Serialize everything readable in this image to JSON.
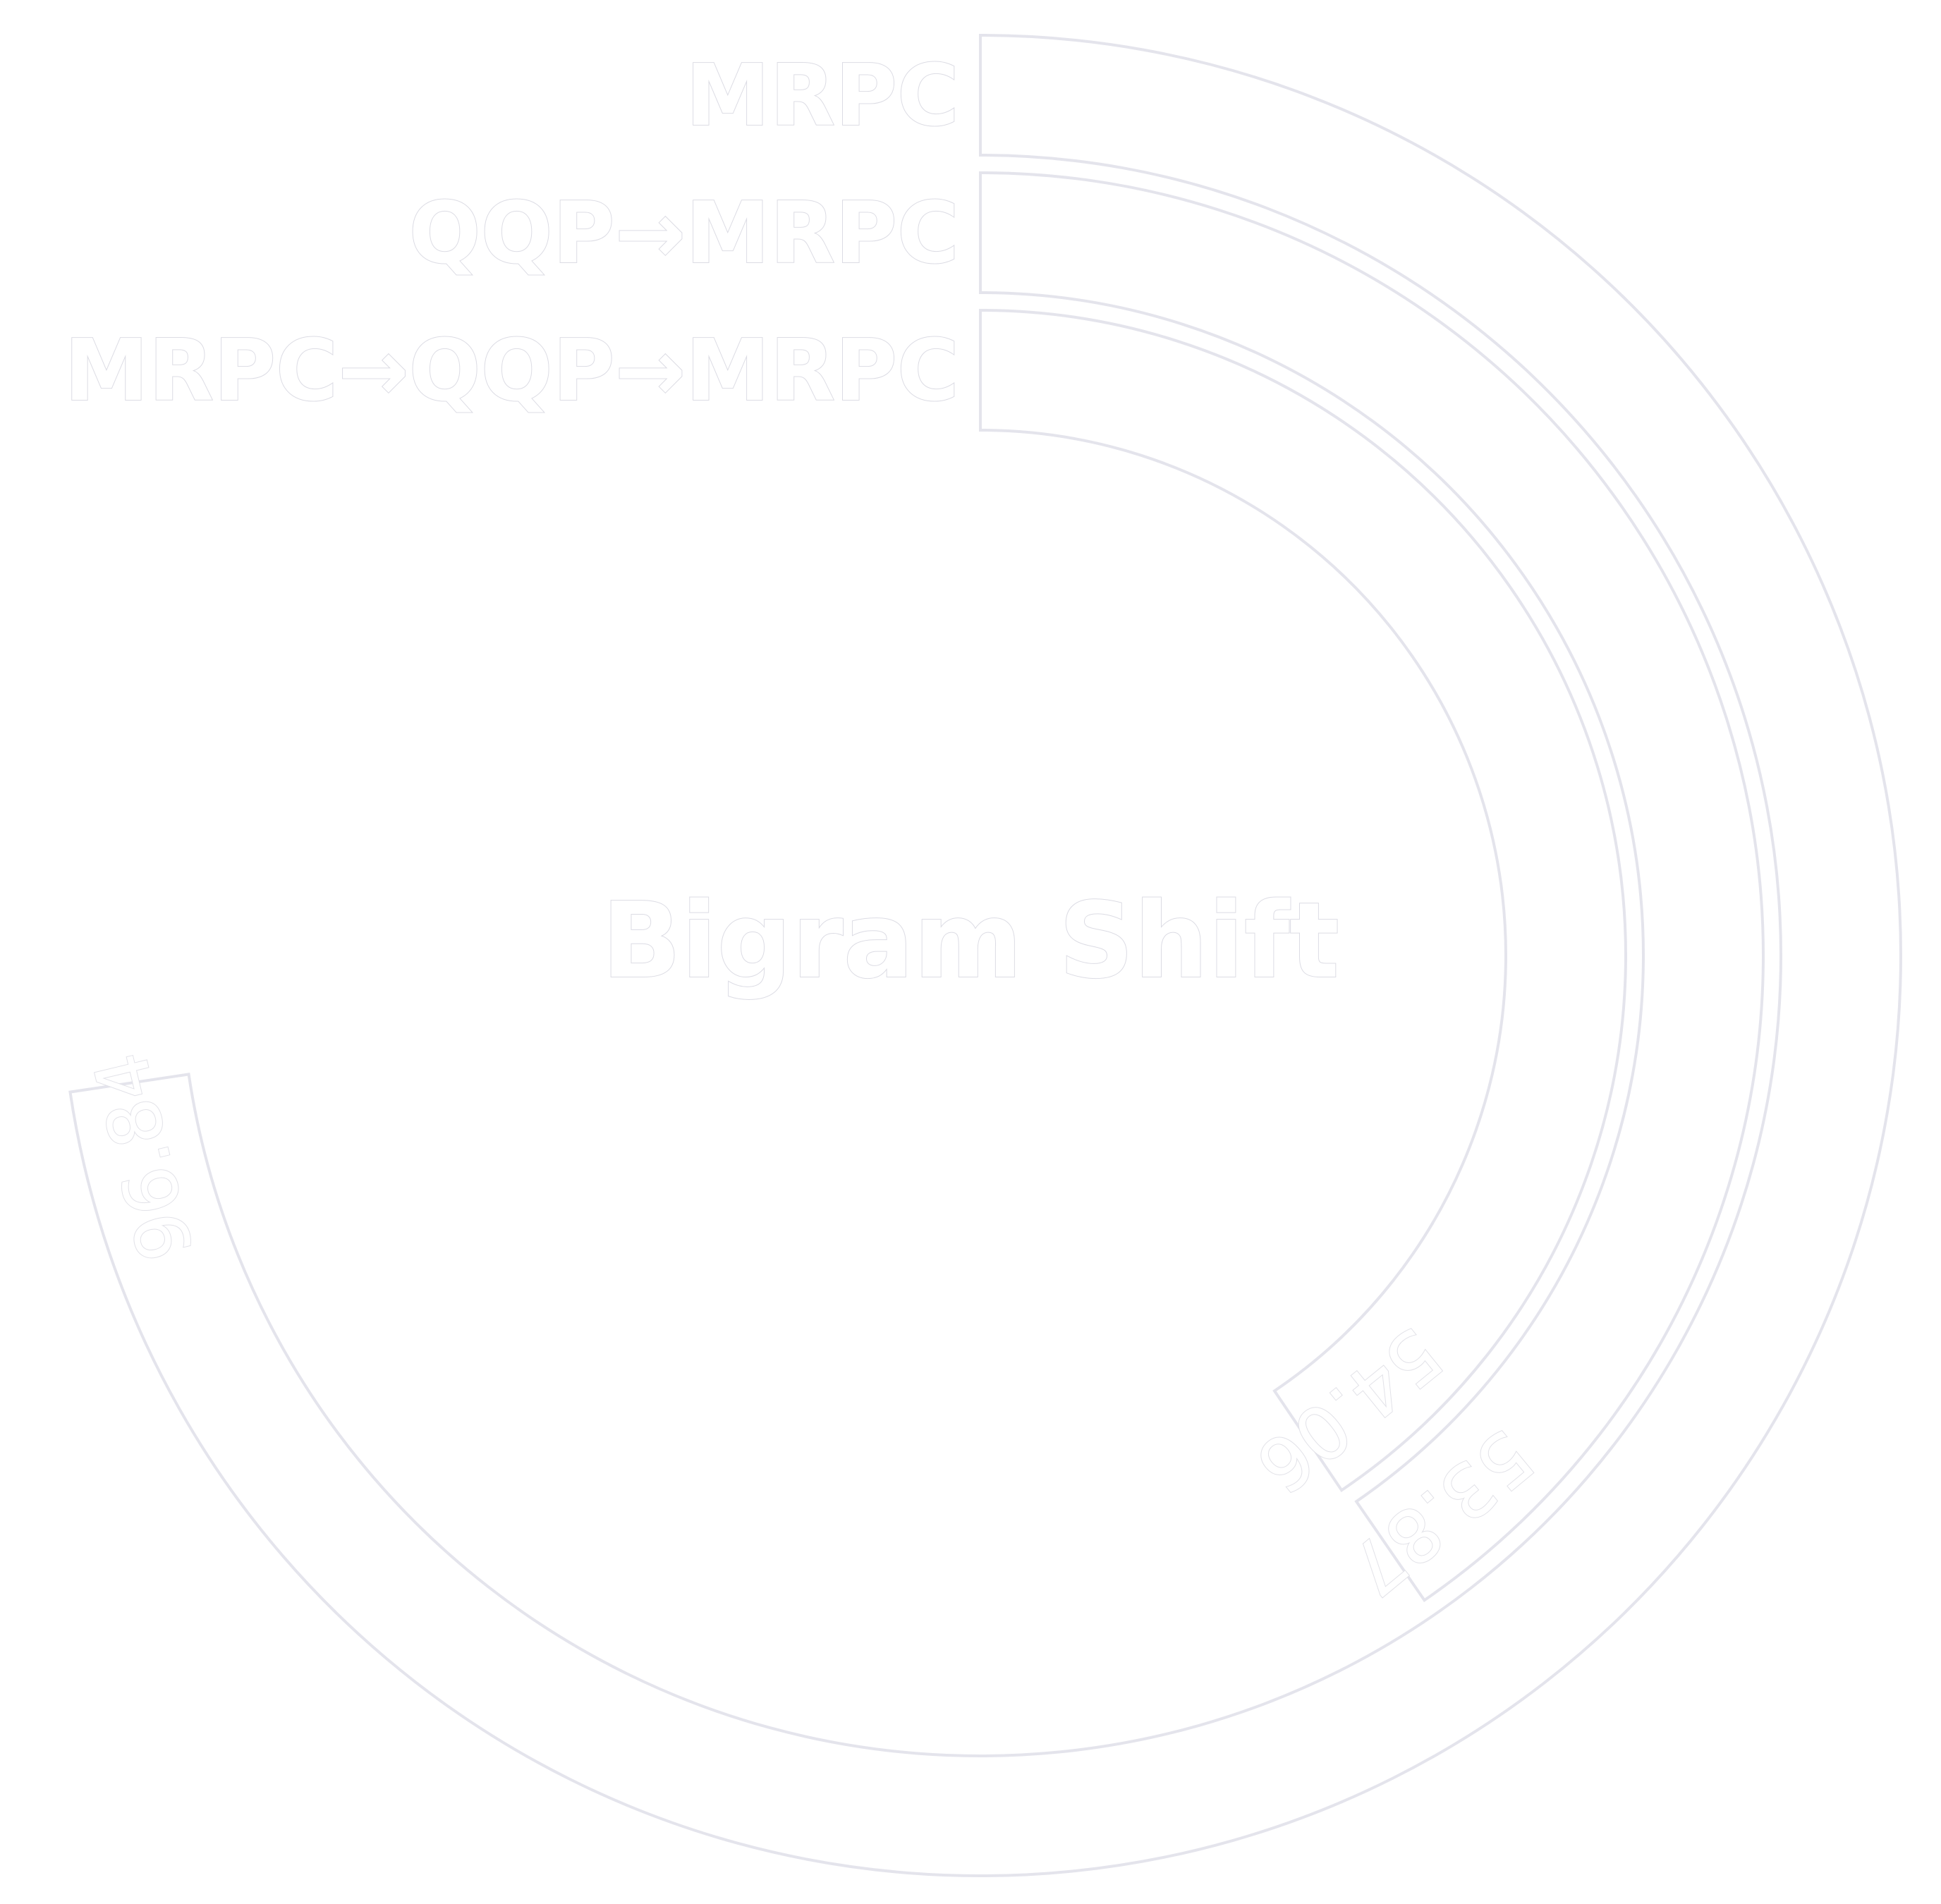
{
  "chart_data": {
    "type": "radial-bar",
    "title": "Bigram Shift",
    "max_value": 100,
    "series": [
      {
        "name": "MRPC",
        "value": 96.84
      },
      {
        "name": "QQP→MRPC",
        "value": 53.87
      },
      {
        "name": "MRPC→QQP→MRPC",
        "value": 54.06
      }
    ],
    "value_labels": [
      "96.84",
      "53.87",
      "54.06"
    ],
    "colors": {
      "background": "#ffffff",
      "bar_fill": "#ffffff",
      "bar_outline": "#e4e4ec",
      "label_outline": "#dcdce4"
    }
  }
}
